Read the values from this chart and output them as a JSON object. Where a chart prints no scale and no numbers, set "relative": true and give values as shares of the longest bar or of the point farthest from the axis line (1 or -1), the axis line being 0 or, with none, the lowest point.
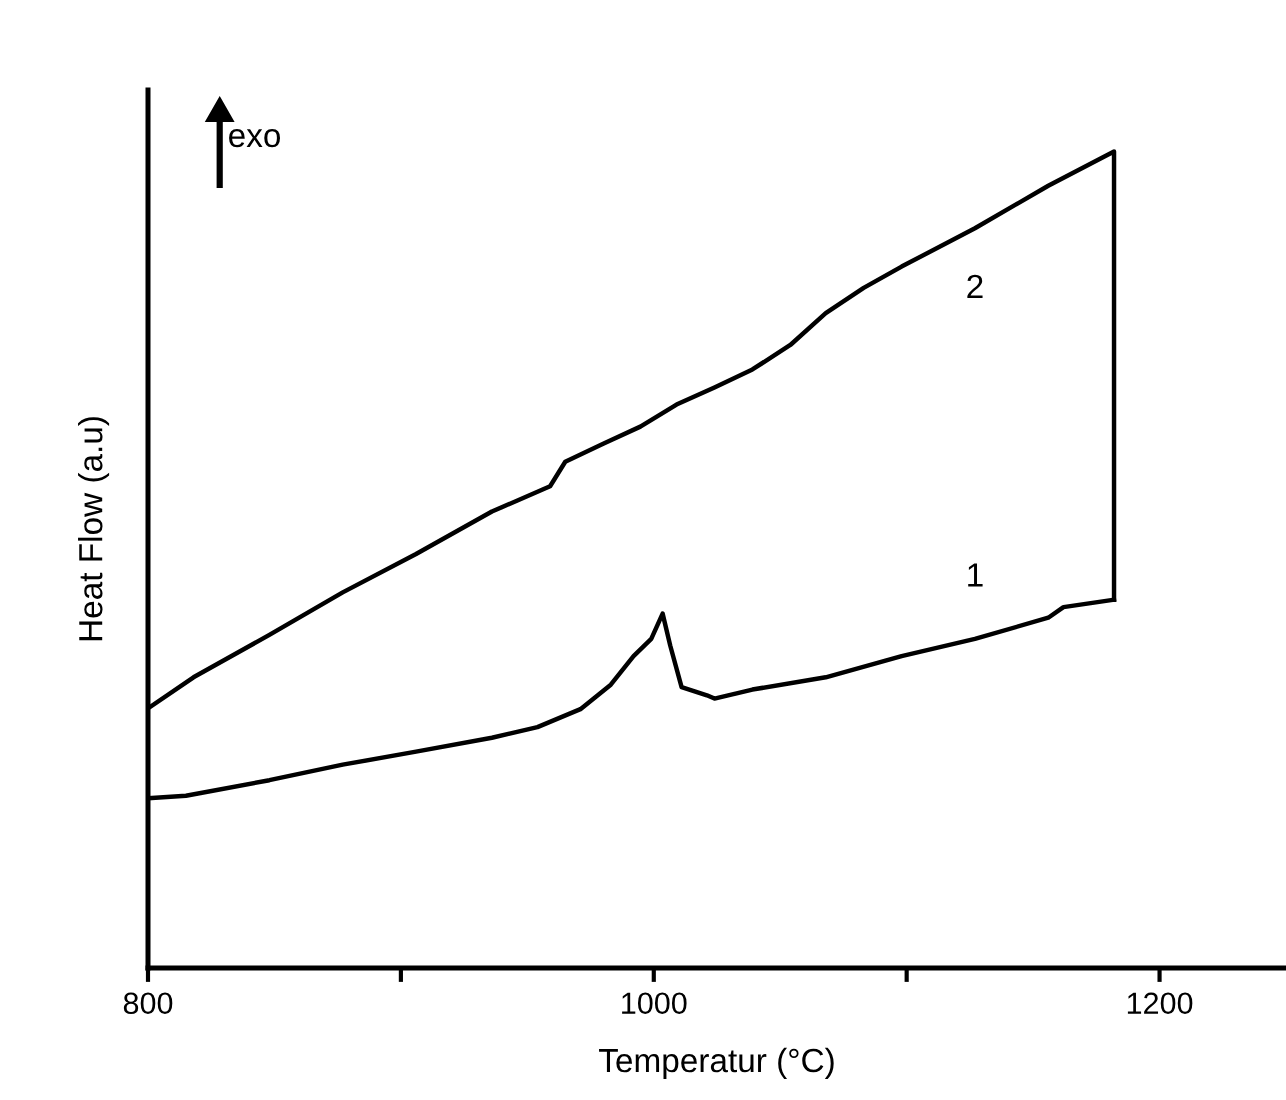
{
  "chart_data": {
    "type": "line",
    "relative": true,
    "xlabel": "Temperatur (°C)",
    "ylabel": "Heat Flow (a.u)",
    "annotations": [
      "exo"
    ],
    "xlim": [
      800,
      1250
    ],
    "xticks": [
      800,
      {
        "value": 900,
        "label": null
      },
      1000,
      {
        "value": 1100,
        "label": null
      },
      1200
    ],
    "grid": false,
    "legend": false,
    "series": [
      {
        "name": "1",
        "color": "#000000",
        "x": [
          800,
          815,
          848,
          877,
          906,
          936,
          954,
          971,
          983,
          992,
          999,
          1003.5,
          1006.5,
          1011,
          1021,
          1024,
          1039,
          1068,
          1098,
          1127,
          1156,
          1162,
          1182
        ],
        "values": [
          0.208,
          0.211,
          0.23,
          0.249,
          0.265,
          0.282,
          0.295,
          0.317,
          0.347,
          0.382,
          0.403,
          0.434,
          0.395,
          0.344,
          0.334,
          0.33,
          0.341,
          0.356,
          0.382,
          0.403,
          0.429,
          0.442,
          0.451
        ]
      },
      {
        "name": "2",
        "color": "#000000",
        "x": [
          1182,
          1182,
          1156,
          1127,
          1098,
          1083,
          1068,
          1054,
          1039,
          1024,
          1009,
          994.7,
          980,
          965,
          959,
          936,
          906,
          877,
          848,
          818,
          800
        ],
        "values": [
          0.451,
          1.0,
          0.958,
          0.906,
          0.859,
          0.833,
          0.802,
          0.763,
          0.733,
          0.711,
          0.69,
          0.663,
          0.642,
          0.62,
          0.59,
          0.559,
          0.507,
          0.46,
          0.408,
          0.356,
          0.318
        ]
      }
    ]
  }
}
